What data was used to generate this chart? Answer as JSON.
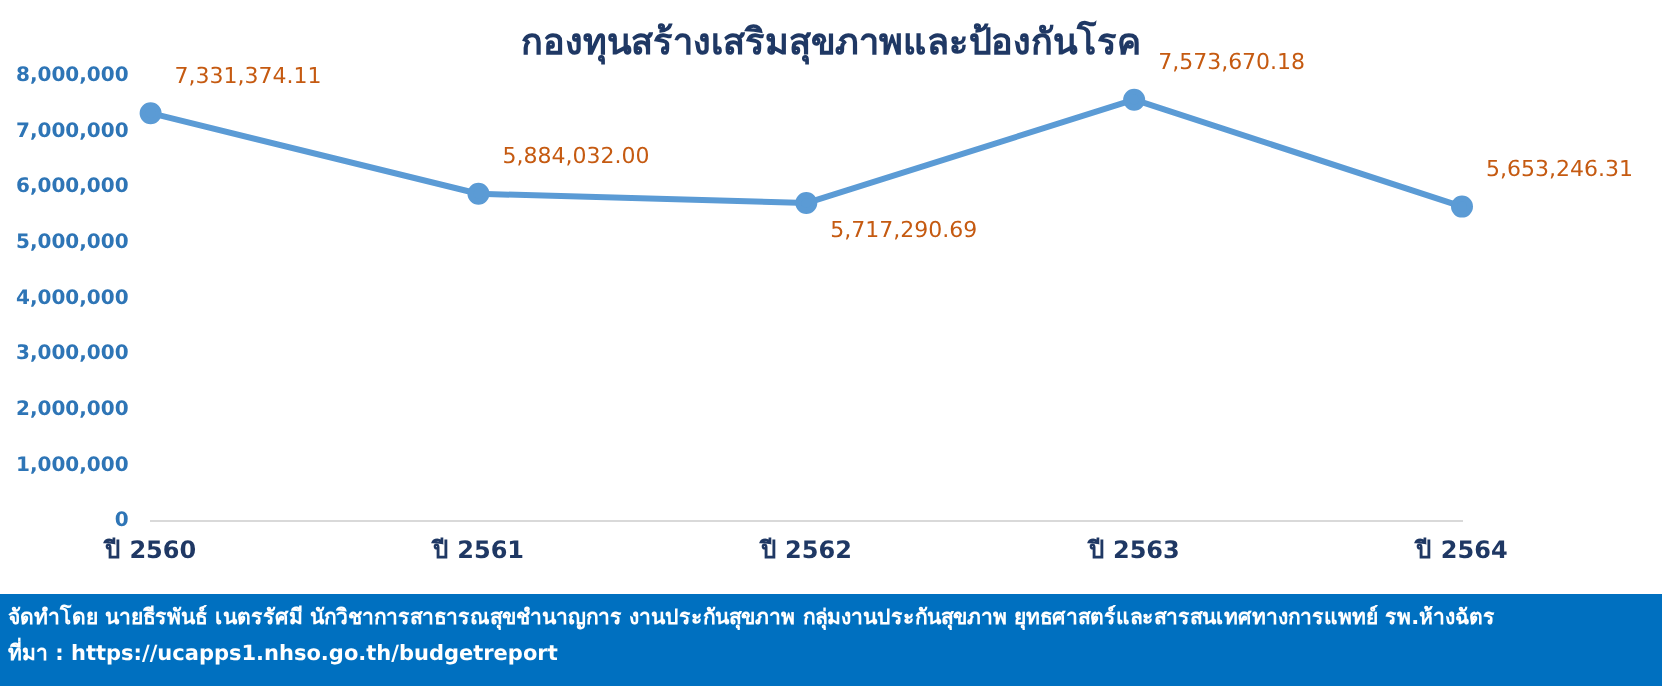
{
  "chart_data": {
    "type": "line",
    "title": "กองทุนสร้างเสริมสุขภาพและป้องกันโรค",
    "categories": [
      "ปี 2560",
      "ปี 2561",
      "ปี 2562",
      "ปี 2563",
      "ปี 2564"
    ],
    "values": [
      7331374.11,
      5884032.0,
      5717290.69,
      7573670.18,
      5653246.31
    ],
    "value_labels": [
      "7,331,374.11",
      "5,884,032.00",
      "5,717,290.69",
      "7,573,670.18",
      "5,653,246.31"
    ],
    "color": "#5b9bd5",
    "marker": "circle",
    "ylim": [
      0,
      8000000
    ],
    "yticks": [
      0,
      {
        "value": 1000000,
        "label": "1,000,000"
      },
      {
        "value": 2000000,
        "label": "2,000,000"
      },
      {
        "value": 3000000,
        "label": "3,000,000"
      },
      {
        "value": 4000000,
        "label": "4,000,000"
      },
      {
        "value": 5000000,
        "label": "5,000,000"
      },
      {
        "value": 6000000,
        "label": "6,000,000"
      },
      {
        "value": 7000000,
        "label": "7,000,000"
      },
      {
        "value": 8000000,
        "label": "8,000,000"
      }
    ],
    "grid": false,
    "legend": false,
    "annotations": [
      "จัดทำโดย นายธีรพันธ์ เนตรรัศมี นักวิชาการสาธารณสุขชำนาญการ งานประกันสุขภาพ กลุ่มงานประกันสุขภาพ ยุทธศาสตร์และสารสนเทศทางการแพทย์ รพ.ห้างฉัตร",
      "ที่มา : https://ucapps1.nhso.go.th/budgetreport"
    ]
  }
}
